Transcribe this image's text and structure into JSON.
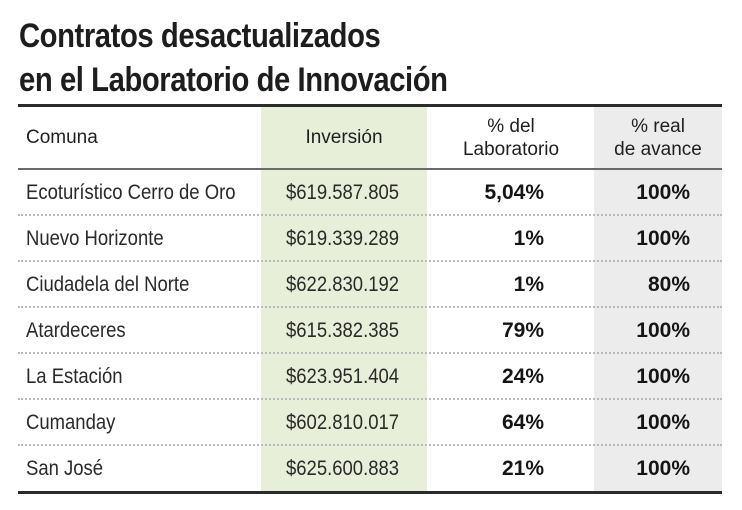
{
  "title": {
    "line1": "Contratos desactualizados",
    "line2": "en el Laboratorio de Innovación"
  },
  "colors": {
    "inversion_column_bg": "#e7efd8",
    "real_column_bg": "#ececec",
    "rule": "#2b2b2b"
  },
  "table": {
    "headers": {
      "comuna": "Comuna",
      "inversion": "Inversión",
      "laboratorio_line1": "% del",
      "laboratorio_line2": "Laboratorio",
      "real_line1": "% real",
      "real_line2": "de avance"
    },
    "rows": [
      {
        "comuna": "Ecoturístico Cerro de Oro",
        "inversion": "$619.587.805",
        "laboratorio": "5,04%",
        "real": "100%"
      },
      {
        "comuna": "Nuevo Horizonte",
        "inversion": "$619.339.289",
        "laboratorio": "1%",
        "real": "100%"
      },
      {
        "comuna": "Ciudadela del Norte",
        "inversion": "$622.830.192",
        "laboratorio": "1%",
        "real": "80%"
      },
      {
        "comuna": "Atardeceres",
        "inversion": "$615.382.385",
        "laboratorio": "79%",
        "real": "100%"
      },
      {
        "comuna": "La Estación",
        "inversion": "$623.951.404",
        "laboratorio": "24%",
        "real": "100%"
      },
      {
        "comuna": "Cumanday",
        "inversion": "$602.810.017",
        "laboratorio": "64%",
        "real": "100%"
      },
      {
        "comuna": "San José",
        "inversion": "$625.600.883",
        "laboratorio": "21%",
        "real": "100%"
      }
    ]
  }
}
